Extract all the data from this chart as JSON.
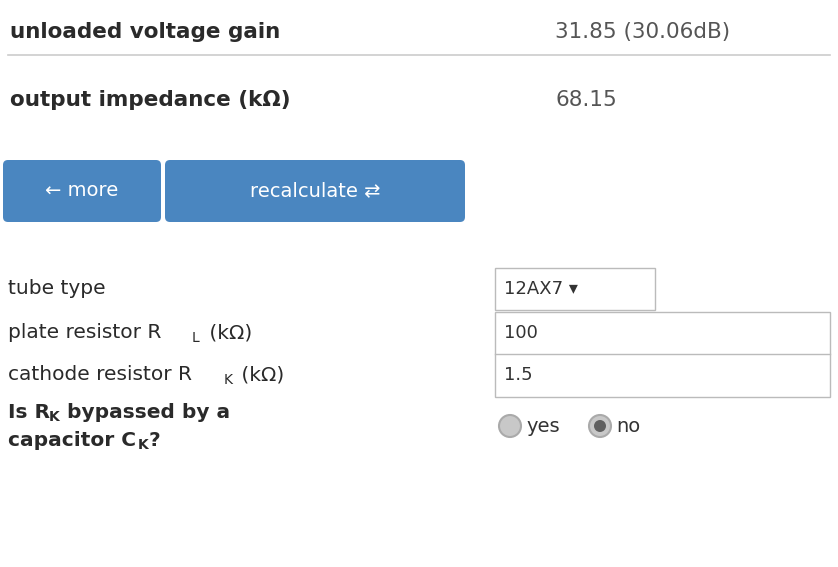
{
  "bg_color": "#ffffff",
  "text_color": "#333333",
  "label_color": "#2a2a2a",
  "value_color": "#555555",
  "button_color": "#4a86c0",
  "button_text_color": "#ffffff",
  "separator_color": "#cccccc",
  "border_color": "#bbbbbb",
  "row1_label": "unloaded voltage gain",
  "row1_value": "31.85 (30.06dB)",
  "row2_label": "output impedance (kΩ)",
  "row2_value": "68.15",
  "btn1_text": "← more",
  "btn2_text": "recalculate ⇄",
  "field1_label": "tube type",
  "field1_value": "12AX7 ▾",
  "field2_value": "100",
  "field3_value": "1.5",
  "radio_yes_label": "yes",
  "radio_no_label": "no",
  "fig_width": 8.38,
  "fig_height": 5.67,
  "dpi": 100
}
